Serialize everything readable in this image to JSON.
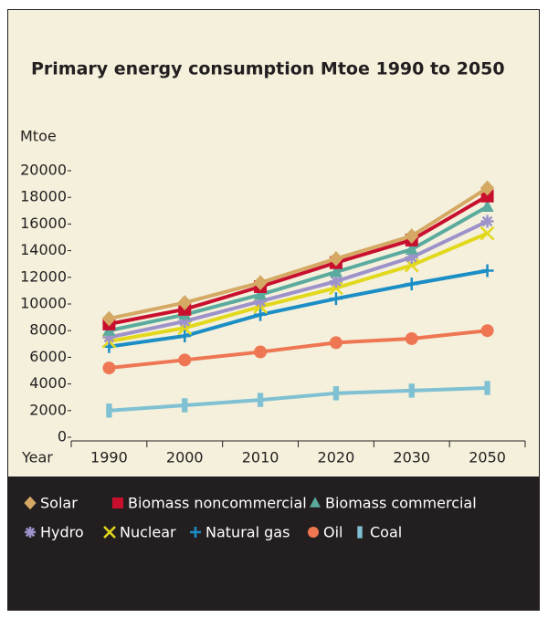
{
  "chart_data": {
    "type": "line",
    "title": "Primary energy consumption Mtoe 1990 to 2050",
    "y_label": "Mtoe",
    "x_label": "Year",
    "categories": [
      "1990",
      "2000",
      "2010",
      "2020",
      "2030",
      "2050"
    ],
    "ylim": [
      0,
      20000
    ],
    "yticks": [
      0,
      2000,
      4000,
      6000,
      8000,
      10000,
      12000,
      14000,
      16000,
      18000,
      20000
    ],
    "series": [
      {
        "name": "Solar",
        "color": "#d5a964",
        "marker": "diamond",
        "values": [
          8900,
          10100,
          11600,
          13400,
          15100,
          18700
        ]
      },
      {
        "name": "Biomass noncommercial",
        "color": "#c8102e",
        "marker": "square",
        "values": [
          8500,
          9600,
          11300,
          13100,
          14800,
          18100
        ]
      },
      {
        "name": "Biomass commercial",
        "color": "#5aab9e",
        "marker": "triangle",
        "values": [
          8000,
          9200,
          10700,
          12400,
          14100,
          17300
        ]
      },
      {
        "name": "Hydro",
        "color": "#9d92ca",
        "marker": "asterisk",
        "values": [
          7500,
          8700,
          10200,
          11700,
          13500,
          16200
        ]
      },
      {
        "name": "Nuclear",
        "color": "#e2d81c",
        "marker": "x",
        "values": [
          7200,
          8200,
          9800,
          11200,
          12900,
          15300
        ]
      },
      {
        "name": "Natural gas",
        "color": "#1b8ec6",
        "marker": "plus",
        "values": [
          6800,
          7600,
          9200,
          10400,
          11500,
          12500
        ]
      },
      {
        "name": "Oil",
        "color": "#ee7652",
        "marker": "circle",
        "values": [
          5200,
          5800,
          6400,
          7100,
          7400,
          8000
        ]
      },
      {
        "name": "Coal",
        "color": "#7fc0d2",
        "marker": "bar",
        "values": [
          2000,
          2400,
          2800,
          3300,
          3500,
          3700
        ]
      }
    ]
  }
}
